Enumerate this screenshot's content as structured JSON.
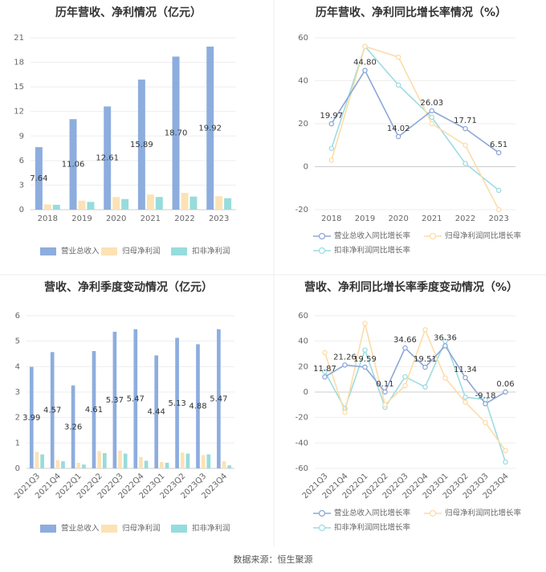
{
  "source_text": "数据来源：恒生聚源",
  "colors": {
    "revenue": "#8DADDE",
    "net_profit": "#FCE2B5",
    "deducted_profit": "#97DCDC",
    "revenue_line": "#8DA7D6",
    "net_line": "#FCDCA8",
    "deducted_line": "#9CDCE2",
    "grid": "#EEEEEE",
    "axis": "#CCCCCC"
  },
  "chart_data": [
    {
      "id": "annual-bar",
      "type": "bar",
      "title": "历年营收、净利情况（亿元）",
      "categories": [
        "2018",
        "2019",
        "2020",
        "2021",
        "2022",
        "2023"
      ],
      "ylim": [
        0,
        21
      ],
      "yticks": [
        "0",
        "3",
        "6",
        "9",
        "12",
        "15",
        "18",
        "21"
      ],
      "grid": true,
      "legend_position": "bottom",
      "series": [
        {
          "name": "营业总收入",
          "color_key": "revenue",
          "values": [
            7.64,
            11.06,
            12.61,
            15.89,
            18.7,
            19.92
          ],
          "labels": [
            "7.64",
            "11.06",
            "12.61",
            "15.89",
            "18.70",
            "19.92"
          ]
        },
        {
          "name": "归母净利润",
          "color_key": "net_profit",
          "values": [
            0.65,
            1.1,
            1.55,
            1.85,
            2.05,
            1.65
          ]
        },
        {
          "name": "扣非净利润",
          "color_key": "deducted_profit",
          "values": [
            0.6,
            0.95,
            1.3,
            1.55,
            1.6,
            1.4
          ]
        }
      ]
    },
    {
      "id": "annual-line",
      "type": "line",
      "title": "历年营收、净利同比增长率情况（%）",
      "categories": [
        "2018",
        "2019",
        "2020",
        "2021",
        "2022",
        "2023"
      ],
      "ylim": [
        -20,
        60
      ],
      "yticks": [
        "-20",
        "0",
        "20",
        "40",
        "60"
      ],
      "grid": true,
      "legend_position": "bottom",
      "series": [
        {
          "name": "营业总收入同比增长率",
          "color_key": "revenue_line",
          "values": [
            19.97,
            44.8,
            14.02,
            26.03,
            17.71,
            6.51
          ],
          "labels": [
            "19.97",
            "44.80",
            "14.02",
            "26.03",
            "17.71",
            "6.51"
          ]
        },
        {
          "name": "归母净利润同比增长率",
          "color_key": "net_line",
          "values": [
            3,
            56,
            51,
            20,
            10,
            -20
          ]
        },
        {
          "name": "扣非净利润同比增长率",
          "color_key": "deducted_line",
          "values": [
            8.5,
            56,
            38,
            23,
            1.5,
            -11
          ]
        }
      ]
    },
    {
      "id": "quarter-bar",
      "type": "bar",
      "title": "营收、净利季度变动情况（亿元）",
      "categories": [
        "2021Q3",
        "2021Q4",
        "2022Q1",
        "2022Q2",
        "2022Q3",
        "2022Q4",
        "2023Q1",
        "2023Q2",
        "2023Q3",
        "2023Q4"
      ],
      "ylim": [
        0,
        6
      ],
      "yticks": [
        "0",
        "1",
        "2",
        "3",
        "4",
        "5",
        "6"
      ],
      "grid": true,
      "legend_position": "bottom",
      "series": [
        {
          "name": "营业总收入",
          "color_key": "revenue",
          "values": [
            3.99,
            4.57,
            3.26,
            4.61,
            5.37,
            5.47,
            4.44,
            5.13,
            4.88,
            5.47
          ],
          "labels": [
            "3.99",
            "4.57",
            "3.26",
            "4.61",
            "5.37",
            "5.47",
            "4.44",
            "5.13",
            "4.88",
            "5.47"
          ]
        },
        {
          "name": "归母净利润",
          "color_key": "net_profit",
          "values": [
            0.65,
            0.32,
            0.22,
            0.68,
            0.7,
            0.45,
            0.25,
            0.62,
            0.52,
            0.28
          ]
        },
        {
          "name": "扣非净利润",
          "color_key": "deducted_profit",
          "values": [
            0.55,
            0.28,
            0.15,
            0.6,
            0.58,
            0.3,
            0.22,
            0.58,
            0.55,
            0.12
          ]
        }
      ]
    },
    {
      "id": "quarter-line",
      "type": "line",
      "title": "营收、净利同比增长率季度变动情况（%）",
      "categories": [
        "2021Q3",
        "2021Q4",
        "2022Q1",
        "2022Q2",
        "2022Q3",
        "2022Q4",
        "2023Q1",
        "2023Q2",
        "2023Q3",
        "2023Q4"
      ],
      "ylim": [
        -60,
        60
      ],
      "yticks": [
        "-60",
        "-40",
        "-20",
        "0",
        "20",
        "40",
        "60"
      ],
      "grid": true,
      "legend_position": "bottom",
      "series": [
        {
          "name": "营业总收入同比增长率",
          "color_key": "revenue_line",
          "values": [
            11.87,
            21.26,
            19.59,
            0.11,
            34.66,
            19.51,
            36.36,
            11.34,
            -9.18,
            0.06
          ],
          "labels": [
            "11.87",
            "21.26",
            "19.59",
            "0.11",
            "34.66",
            "19.51",
            "36.36",
            "11.34",
            "-9.18",
            "0.06"
          ]
        },
        {
          "name": "归母净利润同比增长率",
          "color_key": "net_line",
          "values": [
            31,
            -16,
            54,
            -10,
            5,
            49,
            11,
            -8,
            -24,
            -46
          ]
        },
        {
          "name": "扣非净利润同比增长率",
          "color_key": "deducted_line",
          "values": [
            16,
            -13,
            33,
            -12,
            12,
            4,
            40,
            -4,
            -6,
            -55
          ]
        }
      ]
    }
  ]
}
